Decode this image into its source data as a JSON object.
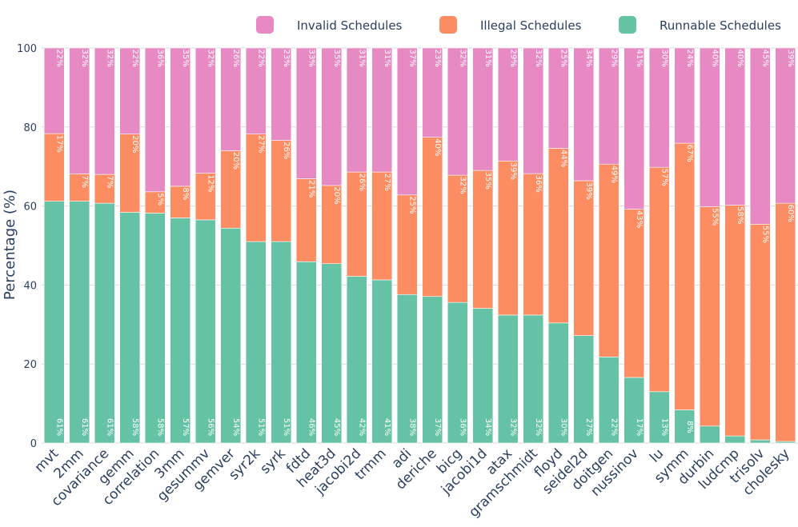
{
  "chart_data": {
    "type": "bar",
    "stacked": true,
    "title": "",
    "xlabel": "",
    "ylabel": "Percentage (%)",
    "ylim": [
      0,
      100
    ],
    "yticks": [
      0,
      20,
      40,
      60,
      80,
      100
    ],
    "grid": true,
    "legend_position": "top-right",
    "categories": [
      "mvt",
      "2mm",
      "covariance",
      "gemm",
      "correlation",
      "3mm",
      "gesummv",
      "gemver",
      "syr2k",
      "syrk",
      "fdtd",
      "heat3d",
      "jacobi2d",
      "trmm",
      "adi",
      "deriche",
      "bicg",
      "jacobi1d",
      "atax",
      "gramschmidt",
      "floyd",
      "seidel2d",
      "doitgen",
      "nussinov",
      "lu",
      "symm",
      "durbin",
      "ludcmp",
      "trisolv",
      "cholesky"
    ],
    "series": [
      {
        "name": "Runnable Schedules",
        "color": "#66c2a5",
        "values": [
          61.2,
          61.2,
          60.7,
          58.4,
          58.2,
          57.0,
          56.5,
          54.4,
          51.0,
          51.0,
          45.9,
          45.4,
          42.2,
          41.3,
          37.6,
          37.1,
          35.6,
          34.1,
          32.4,
          32.4,
          30.4,
          27.2,
          21.8,
          16.6,
          13.0,
          8.4,
          4.3,
          1.8,
          0.8,
          0.4
        ],
        "labels": [
          "61%",
          "61%",
          "61%",
          "58%",
          "58%",
          "57%",
          "56%",
          "54%",
          "51%",
          "51%",
          "46%",
          "45%",
          "42%",
          "41%",
          "38%",
          "37%",
          "36%",
          "34%",
          "32%",
          "32%",
          "30%",
          "27%",
          "22%",
          "17%",
          "13%",
          "8%",
          "",
          "",
          "",
          ""
        ]
      },
      {
        "name": "Illegal Schedules",
        "color": "#fc8d62",
        "values": [
          17.1,
          6.9,
          7.3,
          19.8,
          5.4,
          8.0,
          11.8,
          19.6,
          27.2,
          25.6,
          21.0,
          19.8,
          26.4,
          27.3,
          25.2,
          40.3,
          32.2,
          34.9,
          39.0,
          35.8,
          44.2,
          39.2,
          48.8,
          42.6,
          56.8,
          67.5,
          55.5,
          58.4,
          54.6,
          60.3
        ],
        "labels": [
          "17%",
          "7%",
          "7%",
          "20%",
          "5%",
          "8%",
          "12%",
          "20%",
          "27%",
          "26%",
          "21%",
          "20%",
          "26%",
          "27%",
          "25%",
          "40%",
          "32%",
          "35%",
          "39%",
          "36%",
          "44%",
          "39%",
          "49%",
          "43%",
          "57%",
          "67%",
          "55%",
          "58%",
          "55%",
          "60%"
        ]
      },
      {
        "name": "Invalid Schedules",
        "color": "#e78ac3",
        "values": [
          21.7,
          31.9,
          32.0,
          21.8,
          36.4,
          35.0,
          31.7,
          26.0,
          21.8,
          23.4,
          33.1,
          34.8,
          31.4,
          31.4,
          37.2,
          22.6,
          32.2,
          31.0,
          28.6,
          31.8,
          25.4,
          33.6,
          29.4,
          40.8,
          30.2,
          24.1,
          40.2,
          39.8,
          44.6,
          39.3
        ],
        "labels": [
          "22%",
          "32%",
          "32%",
          "22%",
          "36%",
          "35%",
          "32%",
          "26%",
          "22%",
          "23%",
          "33%",
          "35%",
          "31%",
          "31%",
          "37%",
          "23%",
          "32%",
          "31%",
          "29%",
          "32%",
          "25%",
          "34%",
          "29%",
          "41%",
          "30%",
          "24%",
          "40%",
          "40%",
          "45%",
          "39%"
        ]
      }
    ],
    "legend_order": [
      "Invalid Schedules",
      "Illegal Schedules",
      "Runnable Schedules"
    ]
  }
}
